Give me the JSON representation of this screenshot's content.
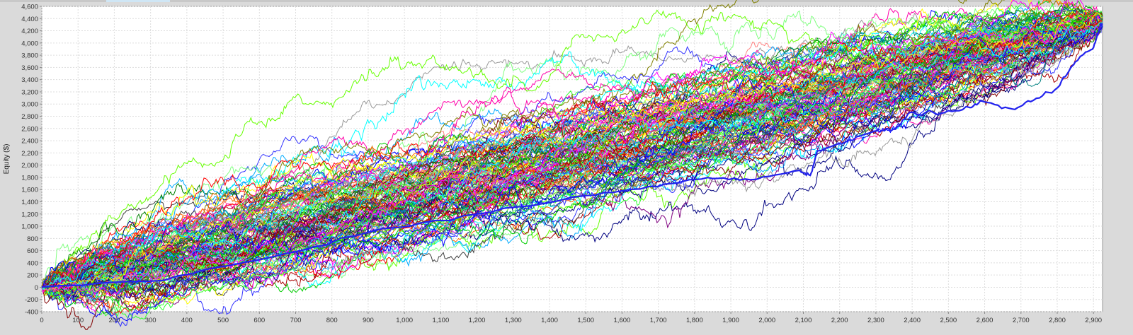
{
  "chart_data": {
    "type": "line",
    "title": "",
    "xlabel": "",
    "ylabel": "Equity ($)",
    "xlim": [
      0,
      2925
    ],
    "ylim": [
      -400,
      4600
    ],
    "x_ticks": [
      "0",
      "100",
      "200",
      "300",
      "400",
      "500",
      "600",
      "700",
      "800",
      "900",
      "1,000",
      "1,100",
      "1,200",
      "1,300",
      "1,400",
      "1,500",
      "1,600",
      "1,700",
      "1,800",
      "1,900",
      "2,000",
      "2,100",
      "2,200",
      "2,300",
      "2,400",
      "2,500",
      "2,600",
      "2,700",
      "2,800",
      "2,900"
    ],
    "y_ticks": [
      "-400",
      "-200",
      "0",
      "200",
      "400",
      "600",
      "800",
      "1,000",
      "1,200",
      "1,400",
      "1,600",
      "1,800",
      "2,000",
      "2,200",
      "2,400",
      "2,600",
      "2,800",
      "3,000",
      "3,200",
      "3,400",
      "3,600",
      "3,800",
      "4,000",
      "4,200",
      "4,400",
      "4,600"
    ],
    "grid": true,
    "legend": "none",
    "simulated_paths": {
      "count": 150,
      "start_value": 0,
      "end_value_range": [
        4250,
        4450
      ],
      "colors": [
        "#ff0000",
        "#0000ff",
        "#00cc00",
        "#ffff00",
        "#ff00ff",
        "#00ffff",
        "#ff8080",
        "#8080ff",
        "#80ff80",
        "#404040",
        "#800000",
        "#000080",
        "#008000",
        "#808000",
        "#800080",
        "#008080",
        "#ff6600",
        "#66ff00",
        "#00aaff",
        "#ff00aa",
        "#999999",
        "#33ff33",
        "#3333ff",
        "#aa0000"
      ]
    },
    "series": [
      {
        "highlighted": true,
        "color": "#2222ee",
        "points": [
          [
            0,
            0
          ],
          [
            300,
            100
          ],
          [
            600,
            450
          ],
          [
            900,
            900
          ],
          [
            1200,
            1200
          ],
          [
            1500,
            1500
          ],
          [
            1700,
            1650
          ],
          [
            1836,
            1797
          ],
          [
            1954,
            1761
          ],
          [
            2090,
            1915
          ],
          [
            2119,
            1832
          ],
          [
            2139,
            2234
          ],
          [
            2227,
            2411
          ],
          [
            2305,
            2565
          ],
          [
            2354,
            2589
          ],
          [
            2393,
            2861
          ],
          [
            2480,
            2849
          ],
          [
            2559,
            2943
          ],
          [
            2598,
            3038
          ],
          [
            2676,
            2920
          ],
          [
            2734,
            3061
          ],
          [
            2802,
            3274
          ],
          [
            2842,
            3629
          ],
          [
            2871,
            3806
          ],
          [
            2900,
            3924
          ],
          [
            2919,
            4279
          ],
          [
            2925,
            4300
          ]
        ]
      }
    ]
  }
}
